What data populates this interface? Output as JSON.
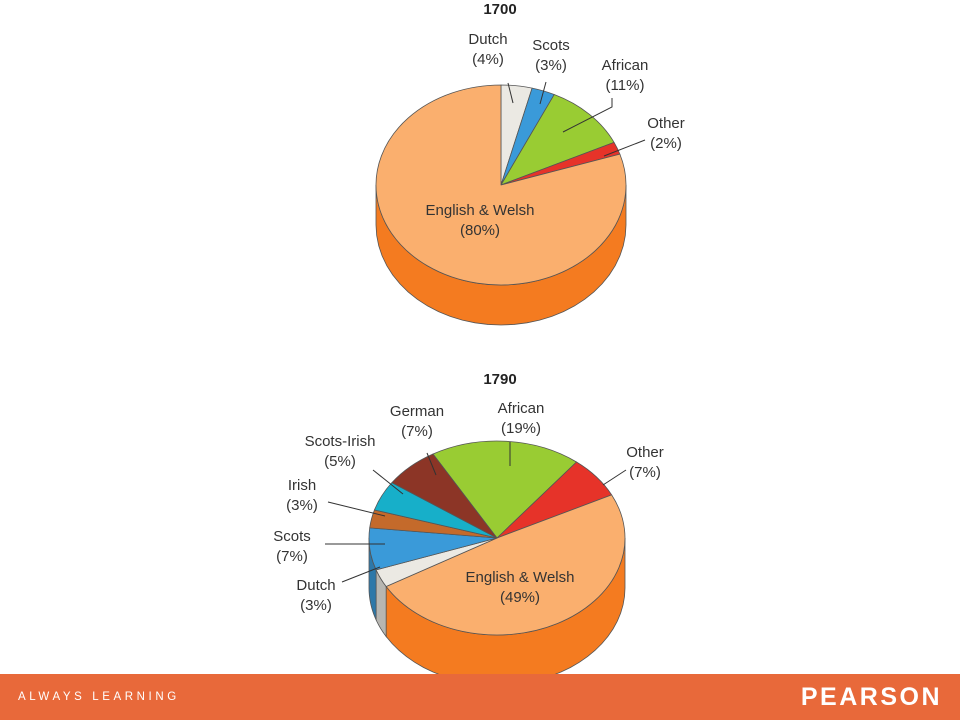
{
  "chart_data": [
    {
      "type": "pie",
      "title": "1700",
      "slices": [
        {
          "label": "Dutch",
          "pct_label": "(4%)",
          "value": 4,
          "color": "#EBE9E3"
        },
        {
          "label": "Scots",
          "pct_label": "(3%)",
          "value": 3,
          "color": "#3A9AD9"
        },
        {
          "label": "African",
          "pct_label": "(11%)",
          "value": 11,
          "color": "#99CC33"
        },
        {
          "label": "Other",
          "pct_label": "(2%)",
          "value": 2,
          "color": "#E63329"
        },
        {
          "label": "English & Welsh",
          "pct_label": "(80%)",
          "value": 80,
          "color": "#FAAF6E"
        }
      ]
    },
    {
      "type": "pie",
      "title": "1790",
      "slices": [
        {
          "label": "African",
          "pct_label": "(19%)",
          "value": 19,
          "color": "#99CC33"
        },
        {
          "label": "Other",
          "pct_label": "(7%)",
          "value": 7,
          "color": "#E63329"
        },
        {
          "label": "English & Welsh",
          "pct_label": "(49%)",
          "value": 49,
          "color": "#FAAF6E"
        },
        {
          "label": "Dutch",
          "pct_label": "(3%)",
          "value": 3,
          "color": "#EBE9E3"
        },
        {
          "label": "Scots",
          "pct_label": "(7%)",
          "value": 7,
          "color": "#3A9AD9"
        },
        {
          "label": "Irish",
          "pct_label": "(3%)",
          "value": 3,
          "color": "#C46A2B"
        },
        {
          "label": "Scots-Irish",
          "pct_label": "(5%)",
          "value": 5,
          "color": "#17AFC9"
        },
        {
          "label": "German",
          "pct_label": "(7%)",
          "value": 7,
          "color": "#8C3526"
        }
      ]
    }
  ],
  "footer": {
    "tagline": "ALWAYS LEARNING",
    "brand": "PEARSON",
    "bar_color": "#E8693A"
  }
}
